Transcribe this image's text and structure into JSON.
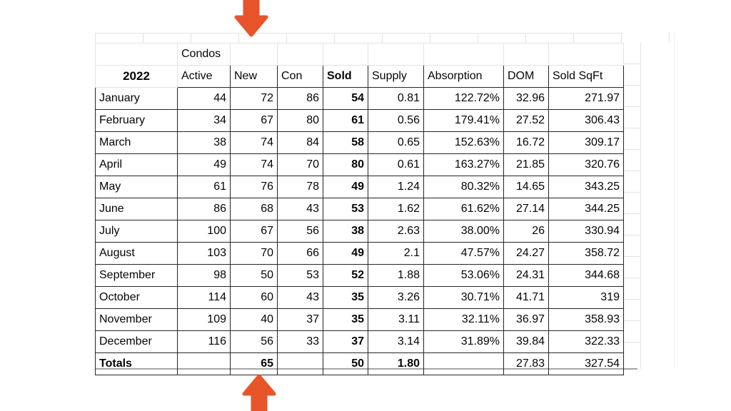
{
  "table": {
    "group_header": "Condos",
    "year_label": "2022",
    "columns": [
      "Active",
      "New",
      "Con",
      "Sold",
      "Supply",
      "Absorption",
      "DOM",
      "Sold SqFt"
    ],
    "rows": [
      [
        "January",
        "44",
        "72",
        "86",
        "54",
        "0.81",
        "122.72%",
        "32.96",
        "271.97"
      ],
      [
        "February",
        "34",
        "67",
        "80",
        "61",
        "0.56",
        "179.41%",
        "27.52",
        "306.43"
      ],
      [
        "March",
        "38",
        "74",
        "84",
        "58",
        "0.65",
        "152.63%",
        "16.72",
        "309.17"
      ],
      [
        "April",
        "49",
        "74",
        "70",
        "80",
        "0.61",
        "163.27%",
        "21.85",
        "320.76"
      ],
      [
        "May",
        "61",
        "76",
        "78",
        "49",
        "1.24",
        "80.32%",
        "14.65",
        "343.25"
      ],
      [
        "June",
        "86",
        "68",
        "43",
        "53",
        "1.62",
        "61.62%",
        "27.14",
        "344.25"
      ],
      [
        "July",
        "100",
        "67",
        "56",
        "38",
        "2.63",
        "38.00%",
        "26",
        "330.94"
      ],
      [
        "August",
        "103",
        "70",
        "66",
        "49",
        "2.1",
        "47.57%",
        "24.27",
        "358.72"
      ],
      [
        "September",
        "98",
        "50",
        "53",
        "52",
        "1.88",
        "53.06%",
        "24.31",
        "344.68"
      ],
      [
        "October",
        "114",
        "60",
        "43",
        "35",
        "3.26",
        "30.71%",
        "41.71",
        "319"
      ],
      [
        "November",
        "109",
        "40",
        "37",
        "35",
        "3.11",
        "32.11%",
        "36.97",
        "358.93"
      ],
      [
        "December",
        "116",
        "56",
        "33",
        "37",
        "3.14",
        "31.89%",
        "39.84",
        "322.33"
      ]
    ],
    "totals": [
      "Totals",
      "",
      "65",
      "",
      "50",
      "1.80",
      "",
      "27.83",
      "327.54"
    ]
  },
  "annotations": {
    "top_arrow_icon": "arrow-down",
    "bottom_arrow_icon": "arrow-up",
    "arrow_color": "#e8542a"
  },
  "colors": {
    "dark_border": "#262626",
    "light_grid": "#e3e3e3",
    "bottom_rule": "#a6a6a6",
    "text": "#050505"
  }
}
